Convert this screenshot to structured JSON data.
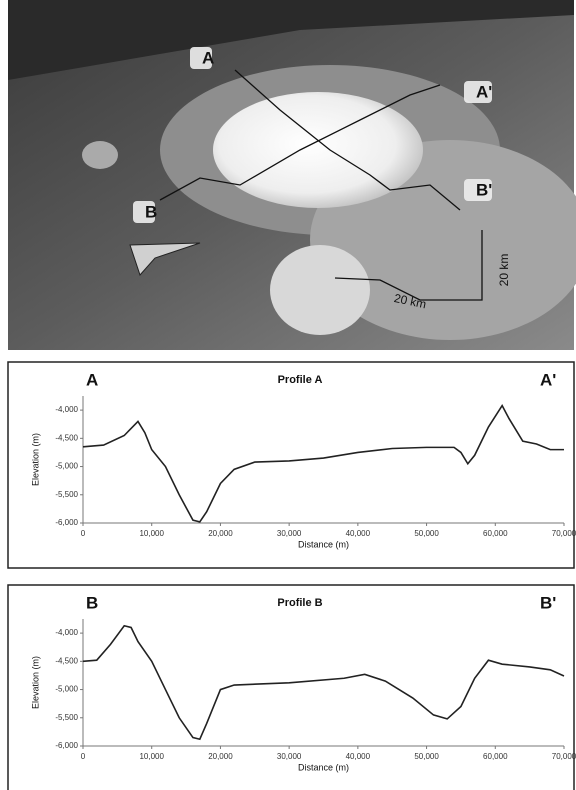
{
  "map": {
    "labels": [
      "A",
      "B",
      "A'",
      "B'"
    ],
    "scale_labels": [
      "20 km",
      "20 km"
    ]
  },
  "chart_data": [
    {
      "type": "line",
      "title": "Profile A",
      "start_label": "A",
      "end_label": "A'",
      "x_label": "Distance (m)",
      "y_label": "Elevation (m)",
      "xlim": [
        0,
        70000
      ],
      "ylim": [
        -6000,
        -3750
      ],
      "xticks": [
        0,
        {
          "value": 10000,
          "label": "10,000"
        },
        {
          "value": 20000,
          "label": "20,000"
        },
        {
          "value": 30000,
          "label": "30,000"
        },
        {
          "value": 40000,
          "label": "40,000"
        },
        {
          "value": 50000,
          "label": "50,000"
        },
        {
          "value": 60000,
          "label": "60,000"
        },
        {
          "value": 70000,
          "label": "70,000"
        }
      ],
      "yticks": [
        {
          "value": -4000,
          "label": "-4,000"
        },
        {
          "value": -4500,
          "label": "-4,500"
        },
        {
          "value": -5000,
          "label": "-5,000"
        },
        {
          "value": -5500,
          "label": "-5,500"
        },
        {
          "value": -6000,
          "label": "-6,000"
        }
      ],
      "color": "#222222",
      "x": [
        0,
        3000,
        6000,
        8000,
        9000,
        10000,
        12000,
        14000,
        16000,
        17000,
        18000,
        20000,
        22000,
        25000,
        30000,
        35000,
        40000,
        45000,
        50000,
        54000,
        55000,
        56000,
        57000,
        59000,
        61000,
        62000,
        64000,
        66000,
        68000,
        70000
      ],
      "values": [
        -4650,
        -4620,
        -4450,
        -4200,
        -4400,
        -4700,
        -5000,
        -5500,
        -5950,
        -5980,
        -5800,
        -5300,
        -5050,
        -4920,
        -4900,
        -4850,
        -4750,
        -4680,
        -4660,
        -4660,
        -4750,
        -4950,
        -4800,
        -4300,
        -3920,
        -4150,
        -4550,
        -4600,
        -4700,
        -4700
      ]
    },
    {
      "type": "line",
      "title": "Profile B",
      "start_label": "B",
      "end_label": "B'",
      "x_label": "Distance (m)",
      "y_label": "Elevation (m)",
      "xlim": [
        0,
        70000
      ],
      "ylim": [
        -6000,
        -3750
      ],
      "xticks": [
        0,
        {
          "value": 10000,
          "label": "10,000"
        },
        {
          "value": 20000,
          "label": "20,000"
        },
        {
          "value": 30000,
          "label": "30,000"
        },
        {
          "value": 40000,
          "label": "40,000"
        },
        {
          "value": 50000,
          "label": "50,000"
        },
        {
          "value": 60000,
          "label": "60,000"
        },
        {
          "value": 70000,
          "label": "70,000"
        }
      ],
      "yticks": [
        {
          "value": -4000,
          "label": "-4,000"
        },
        {
          "value": -4500,
          "label": "-4,500"
        },
        {
          "value": -5000,
          "label": "-5,000"
        },
        {
          "value": -5500,
          "label": "-5,500"
        },
        {
          "value": -6000,
          "label": "-6,000"
        }
      ],
      "color": "#222222",
      "x": [
        0,
        2000,
        4000,
        6000,
        7000,
        8000,
        10000,
        12000,
        14000,
        16000,
        17000,
        18000,
        20000,
        22000,
        30000,
        38000,
        41000,
        44000,
        48000,
        51000,
        53000,
        55000,
        57000,
        59000,
        61000,
        65000,
        68000,
        70000
      ],
      "values": [
        -4500,
        -4480,
        -4200,
        -3870,
        -3900,
        -4150,
        -4500,
        -5000,
        -5500,
        -5850,
        -5880,
        -5600,
        -5000,
        -4920,
        -4880,
        -4800,
        -4730,
        -4850,
        -5150,
        -5450,
        -5520,
        -5300,
        -4800,
        -4480,
        -4550,
        -4600,
        -4650,
        -4760
      ]
    }
  ]
}
